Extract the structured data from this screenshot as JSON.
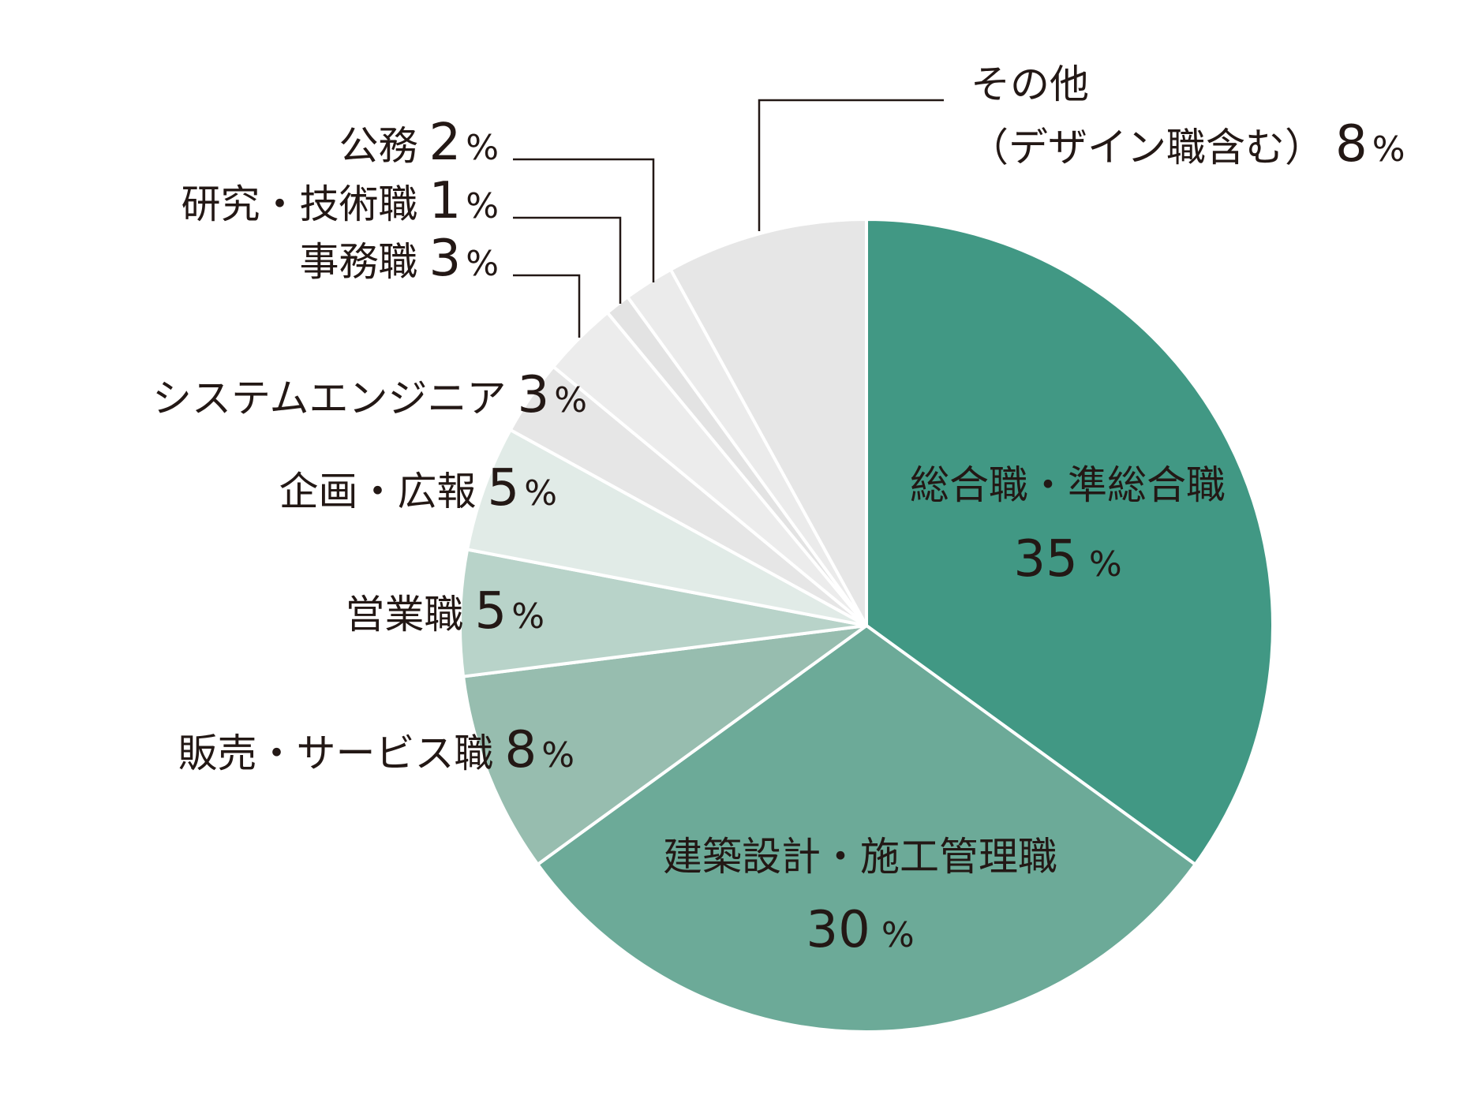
{
  "chart_data": {
    "type": "pie",
    "title": "",
    "unit": "%",
    "start": "12 o'clock, clockwise",
    "slices": [
      {
        "label": "総合職・準総合職",
        "value": 35,
        "color": "#419884",
        "label_color": "#ffffff",
        "label_position": "inside"
      },
      {
        "label": "建築設計・施工管理職",
        "value": 30,
        "color": "#6caa98",
        "label_color": "#231815",
        "label_position": "inside"
      },
      {
        "label": "販売・サービス職",
        "value": 8,
        "color": "#97bdaf",
        "label_color": "#231815",
        "label_position": "outside-left"
      },
      {
        "label": "営業職",
        "value": 5,
        "color": "#b8d3c9",
        "label_color": "#231815",
        "label_position": "outside-left"
      },
      {
        "label": "企画・広報",
        "value": 5,
        "color": "#e1ebe7",
        "label_color": "#231815",
        "label_position": "outside-left"
      },
      {
        "label": "システムエンジニア",
        "value": 3,
        "color": "#e6e6e6",
        "label_color": "#231815",
        "label_position": "outside-left"
      },
      {
        "label": "事務職",
        "value": 3,
        "color": "#ececec",
        "label_color": "#231815",
        "label_position": "outside-left, leader line"
      },
      {
        "label": "研究・技術職",
        "value": 1,
        "color": "#e3e3e3",
        "label_color": "#231815",
        "label_position": "outside-left, leader line"
      },
      {
        "label": "公務",
        "value": 2,
        "color": "#ebebeb",
        "label_color": "#231815",
        "label_position": "outside-left, leader line"
      },
      {
        "label": "その他",
        "label_line2": "（デザイン職含む）",
        "value": 8,
        "color": "#e6e6e6",
        "label_color": "#231815",
        "label_position": "outside-top, leader line"
      }
    ]
  }
}
